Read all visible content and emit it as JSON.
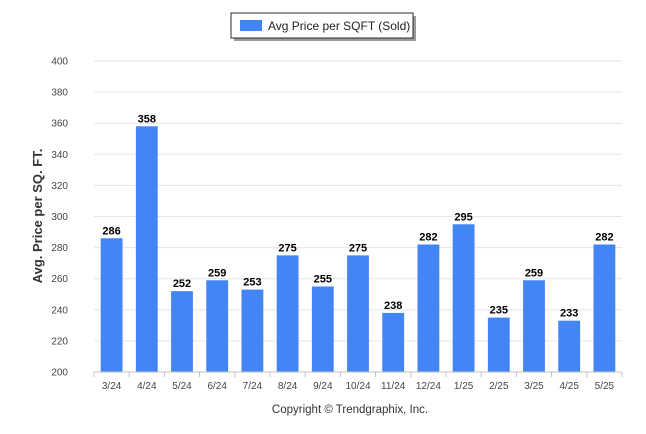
{
  "chart_data": {
    "type": "bar",
    "categories": [
      "3/24",
      "4/24",
      "5/24",
      "6/24",
      "7/24",
      "8/24",
      "9/24",
      "10/24",
      "11/24",
      "12/24",
      "1/25",
      "2/25",
      "3/25",
      "4/25",
      "5/25"
    ],
    "series": [
      {
        "name": "Avg Price per SQFT (Sold)",
        "values": [
          286,
          358,
          252,
          259,
          253,
          275,
          255,
          275,
          238,
          282,
          295,
          235,
          259,
          233,
          282
        ]
      }
    ],
    "ylabel": "Avg. Price per SQ. FT.",
    "xlabel": "",
    "ylim": [
      200,
      400
    ],
    "yticks": [
      200,
      220,
      240,
      260,
      280,
      300,
      320,
      340,
      360,
      380,
      400
    ],
    "grid": true,
    "legend_position": "top-center",
    "bar_color": "#4285f4",
    "data_labels": true
  },
  "footer": "Copyright © Trendgraphix, Inc."
}
